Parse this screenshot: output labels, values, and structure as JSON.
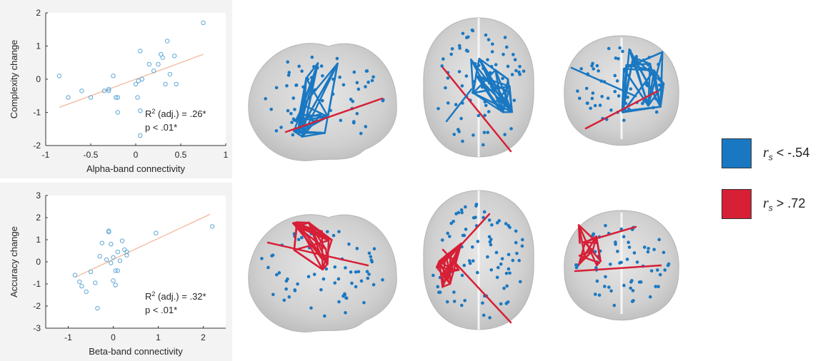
{
  "chart_data": [
    {
      "type": "scatter",
      "xlabel": "Alpha-band connectivity",
      "ylabel": "Complexity change",
      "xlim": [
        -1,
        1
      ],
      "ylim": [
        -2,
        2
      ],
      "xticks": [
        "-1",
        "-0.5",
        "0",
        "0.5",
        "1"
      ],
      "yticks": [
        "-2",
        "-1",
        "0",
        "1",
        "2"
      ],
      "annotation_r2": "(adj.) = .26*",
      "annotation_p": "p < .01*",
      "fit_line": {
        "x": [
          -0.85,
          0.75
        ],
        "y": [
          -0.85,
          0.75
        ]
      },
      "x": [
        -0.85,
        -0.75,
        -0.6,
        -0.5,
        -0.35,
        -0.3,
        -0.3,
        -0.25,
        -0.22,
        -0.2,
        -0.2,
        0.0,
        0.02,
        0.03,
        0.05,
        0.05,
        0.05,
        0.07,
        0.15,
        0.2,
        0.25,
        0.28,
        0.3,
        0.33,
        0.35,
        0.38,
        0.43,
        0.45,
        0.75
      ],
      "y": [
        0.1,
        -0.55,
        -0.35,
        -0.55,
        -0.35,
        -0.3,
        -0.35,
        0.1,
        -0.55,
        -1.0,
        -0.55,
        -0.15,
        -0.55,
        -0.05,
        -0.95,
        -1.7,
        0.85,
        0.0,
        0.45,
        0.25,
        0.45,
        0.75,
        0.65,
        -0.15,
        1.15,
        0.15,
        0.7,
        -0.15,
        1.7
      ]
    },
    {
      "type": "scatter",
      "xlabel": "Beta-band connectivity",
      "ylabel": "Accuracy change",
      "xlim": [
        -1.5,
        2.5
      ],
      "ylim": [
        -3,
        3
      ],
      "xticks": [
        "-1",
        "0",
        "1",
        "2"
      ],
      "yticks": [
        "-3",
        "-2",
        "-1",
        "0",
        "1",
        "2",
        "3"
      ],
      "annotation_r2": "(adj.) = .32*",
      "annotation_p": "p < .01*",
      "fit_line": {
        "x": [
          -0.85,
          2.15
        ],
        "y": [
          -0.7,
          2.15
        ]
      },
      "x": [
        -0.85,
        -0.75,
        -0.7,
        -0.6,
        -0.5,
        -0.4,
        -0.35,
        -0.3,
        -0.25,
        -0.15,
        -0.1,
        -0.1,
        -0.05,
        -0.05,
        0.0,
        0.0,
        0.05,
        0.05,
        0.1,
        0.1,
        0.15,
        0.2,
        0.25,
        0.3,
        0.3,
        0.95,
        2.2
      ],
      "y": [
        -0.6,
        -0.9,
        -1.1,
        -1.35,
        -0.45,
        -0.95,
        -2.1,
        0.25,
        0.85,
        0.1,
        1.4,
        1.35,
        0.8,
        -0.05,
        0.2,
        -0.85,
        -0.4,
        -1.05,
        0.45,
        -0.4,
        0.05,
        0.95,
        0.55,
        0.45,
        0.3,
        1.3,
        1.6
      ]
    }
  ],
  "legend": [
    {
      "symbol": "r",
      "subscript": "s",
      "text": " < -.54",
      "color": "#1a78c2"
    },
    {
      "symbol": "r",
      "subscript": "s",
      "text": " > .72",
      "color": "#d71f36"
    }
  ],
  "colors": {
    "scatter_marker": "#5fa8d8",
    "fit_line": "#f2b99c",
    "negative_edges": "#1a78c2",
    "positive_edges": "#d71f36",
    "brain": "#d4d4d4",
    "node": "#1a78c2"
  },
  "annotation_text": {
    "r2_prefix": "R",
    "r2_power": "2"
  }
}
